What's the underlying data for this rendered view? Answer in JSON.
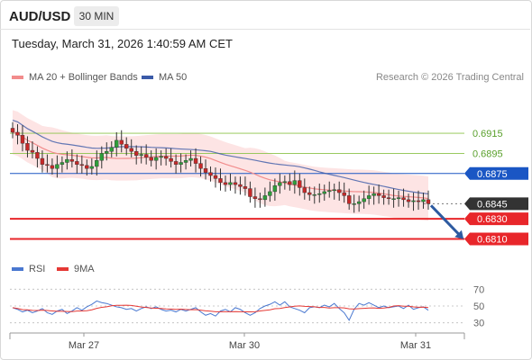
{
  "header": {
    "symbol": "AUD/USD",
    "timeframe": "30 MIN",
    "datetime": "Tuesday, March 31, 2026 1:40:59 AM CET"
  },
  "legend": {
    "ma20": "MA 20 + Bollinger Bands",
    "ma50": "MA 50",
    "credit": "Research © 2026 Trading Central",
    "rsi": "RSI",
    "ma9": "9MA"
  },
  "colors": {
    "ma20": "#f28c8c",
    "band_fill": "#fde4e4",
    "ma50": "#3b5aa8",
    "support": "#e8262a",
    "current": "#333333",
    "green_level": "#8bc34a",
    "pivot": "#1a56c4",
    "arrow": "#2d5aa0",
    "rsi": "#4a78d0",
    "rsi_ma": "#e53935"
  },
  "chart_data": [
    {
      "type": "candlestick",
      "title": "AUD/USD 30 MIN",
      "ylim": [
        0.6797,
        0.6958
      ],
      "x_ticks": [
        "Mar 27",
        "Mar 30",
        "Mar 31"
      ],
      "levels": [
        {
          "label": "0.6915",
          "kind": "resistance"
        },
        {
          "label": "0.6895",
          "kind": "resistance"
        },
        {
          "label": "0.6875",
          "kind": "pivot"
        },
        {
          "label": "0.6845",
          "kind": "current"
        },
        {
          "label": "0.6830",
          "kind": "support"
        },
        {
          "label": "0.6810",
          "kind": "support"
        }
      ],
      "close_series": [
        0.6916,
        0.6913,
        0.6905,
        0.6898,
        0.6896,
        0.689,
        0.6884,
        0.6883,
        0.688,
        0.6884,
        0.6886,
        0.6889,
        0.6887,
        0.6884,
        0.6883,
        0.688,
        0.6882,
        0.6888,
        0.6895,
        0.6897,
        0.6901,
        0.6908,
        0.6904,
        0.69,
        0.6897,
        0.6893,
        0.6894,
        0.6891,
        0.6888,
        0.6891,
        0.6892,
        0.689,
        0.6887,
        0.6884,
        0.6886,
        0.6888,
        0.689,
        0.6885,
        0.688,
        0.6876,
        0.6873,
        0.687,
        0.6866,
        0.6864,
        0.6866,
        0.6864,
        0.6862,
        0.686,
        0.6852,
        0.685,
        0.6849,
        0.6853,
        0.6857,
        0.6863,
        0.6866,
        0.6867,
        0.6864,
        0.6868,
        0.6861,
        0.6856,
        0.6854,
        0.6854,
        0.6855,
        0.6857,
        0.6858,
        0.6859,
        0.6856,
        0.6853,
        0.6845,
        0.6845,
        0.6847,
        0.685,
        0.6853,
        0.6855,
        0.6853,
        0.6851,
        0.685,
        0.685,
        0.6851,
        0.6849,
        0.6847,
        0.6848,
        0.6847,
        0.6849,
        0.6845
      ],
      "forecast_to": 0.681
    },
    {
      "type": "line",
      "series": [
        {
          "name": "RSI"
        },
        {
          "name": "9MA"
        }
      ],
      "ylim": [
        20,
        80
      ],
      "y_ticks": [
        70,
        50,
        30
      ],
      "rsi_values": [
        48,
        46,
        43,
        45,
        42,
        44,
        47,
        42,
        40,
        44,
        46,
        41,
        44,
        48,
        45,
        49,
        52,
        56,
        54,
        53,
        51,
        49,
        48,
        46,
        47,
        44,
        47,
        49,
        47,
        49,
        46,
        44,
        45,
        43,
        46,
        44,
        46,
        48,
        43,
        39,
        41,
        38,
        44,
        46,
        43,
        48,
        46,
        42,
        39,
        42,
        47,
        50,
        52,
        55,
        51,
        55,
        49,
        47,
        45,
        42,
        48,
        49,
        48,
        51,
        49,
        53,
        47,
        42,
        33,
        46,
        53,
        51,
        54,
        51,
        48,
        50,
        48,
        49,
        50,
        47,
        51,
        46,
        48,
        49,
        45
      ]
    }
  ]
}
